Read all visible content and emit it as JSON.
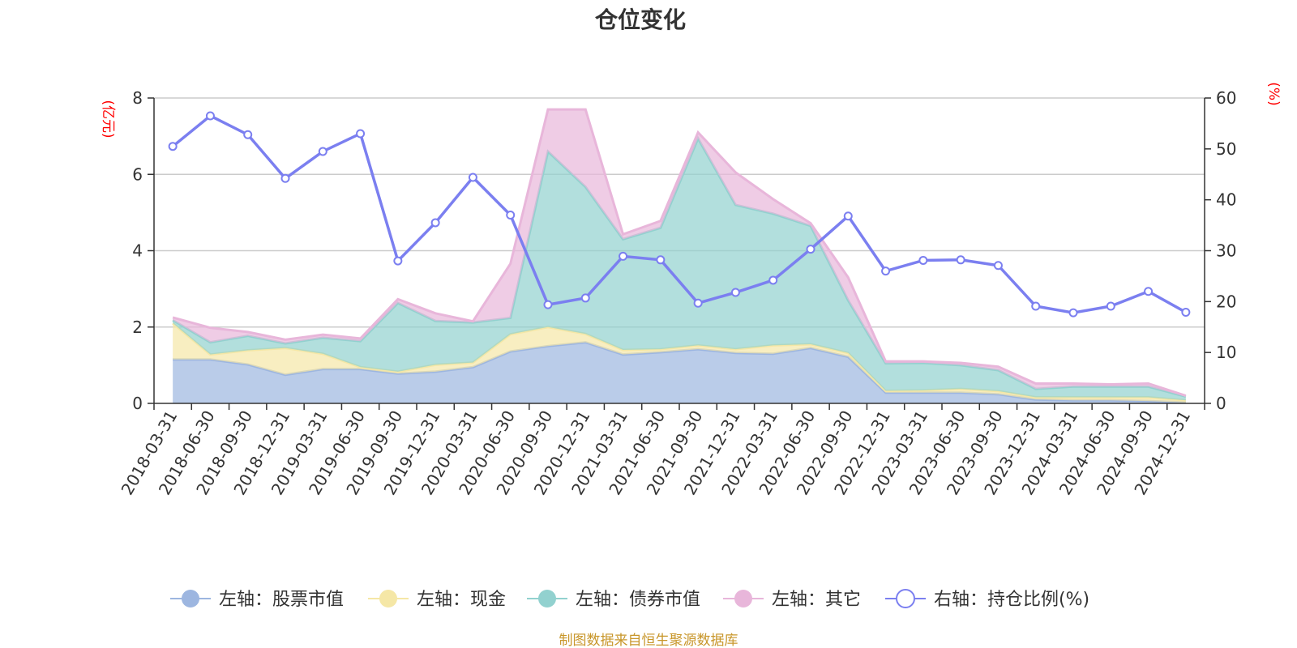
{
  "chart_data": {
    "type": "area",
    "title": "仓位变化",
    "source": "制图数据来自恒生聚源数据库",
    "left_axis": {
      "unit": "(亿元)",
      "ylim": [
        0,
        8
      ],
      "ticks": [
        "0",
        "2",
        "4",
        "6",
        "8"
      ]
    },
    "right_axis": {
      "unit": "(%)",
      "ylim": [
        0,
        60
      ],
      "ticks": [
        "0",
        "10",
        "20",
        "30",
        "40",
        "50",
        "60"
      ]
    },
    "categories": [
      "2018-03-31",
      "2018-06-30",
      "2018-09-30",
      "2018-12-31",
      "2019-03-31",
      "2019-06-30",
      "2019-09-30",
      "2019-12-31",
      "2020-03-31",
      "2020-06-30",
      "2020-09-30",
      "2020-12-31",
      "2021-03-31",
      "2021-06-30",
      "2021-09-30",
      "2021-12-31",
      "2022-03-31",
      "2022-06-30",
      "2022-09-30",
      "2022-12-31",
      "2023-03-31",
      "2023-06-30",
      "2023-09-30",
      "2023-12-31",
      "2024-03-31",
      "2024-06-30",
      "2024-09-30",
      "2024-12-31"
    ],
    "grid": true,
    "legend_position": "bottom",
    "series": [
      {
        "name": "左轴：股票市值",
        "axis": "left",
        "kind": "stack-area",
        "color": "#9db6e0",
        "values": [
          1.15,
          1.15,
          1.02,
          0.75,
          0.9,
          0.9,
          0.78,
          0.83,
          0.95,
          1.36,
          1.5,
          1.6,
          1.28,
          1.34,
          1.42,
          1.32,
          1.3,
          1.45,
          1.22,
          0.28,
          0.28,
          0.28,
          0.24,
          0.1,
          0.08,
          0.08,
          0.06,
          0.02
        ]
      },
      {
        "name": "左轴：现金",
        "axis": "left",
        "kind": "stack-area",
        "color": "#f5e7a6",
        "values": [
          0.95,
          0.13,
          0.37,
          0.7,
          0.4,
          0.05,
          0.05,
          0.18,
          0.12,
          0.45,
          0.5,
          0.22,
          0.12,
          0.08,
          0.1,
          0.1,
          0.22,
          0.1,
          0.1,
          0.05,
          0.06,
          0.1,
          0.08,
          0.06,
          0.08,
          0.08,
          0.1,
          0.06
        ]
      },
      {
        "name": "左轴：债券市值",
        "axis": "left",
        "kind": "stack-area",
        "color": "#92d1cf",
        "values": [
          0.08,
          0.32,
          0.38,
          0.12,
          0.42,
          0.68,
          1.8,
          1.15,
          1.05,
          0.43,
          4.6,
          3.85,
          2.9,
          3.18,
          5.42,
          3.78,
          3.45,
          3.1,
          1.38,
          0.72,
          0.72,
          0.62,
          0.55,
          0.22,
          0.28,
          0.28,
          0.28,
          0.1
        ]
      },
      {
        "name": "左轴：其它",
        "axis": "left",
        "kind": "stack-area",
        "color": "#e8b6da",
        "values": [
          0.07,
          0.38,
          0.1,
          0.1,
          0.08,
          0.07,
          0.1,
          0.2,
          0.03,
          1.42,
          1.1,
          2.03,
          0.13,
          0.18,
          0.16,
          0.85,
          0.38,
          0.07,
          0.6,
          0.05,
          0.04,
          0.06,
          0.09,
          0.14,
          0.08,
          0.06,
          0.08,
          0.02
        ]
      },
      {
        "name": "右轴：持仓比例(%)",
        "axis": "right",
        "kind": "line",
        "color": "#7b7ff0",
        "values": [
          50.5,
          56.5,
          52.8,
          44.2,
          49.5,
          53,
          28,
          35.5,
          44.4,
          37,
          19.4,
          20.7,
          28.9,
          28.2,
          19.7,
          21.8,
          24.2,
          30.3,
          36.8,
          26,
          28.1,
          28.2,
          27.1,
          19.1,
          17.8,
          19.1,
          22,
          17.9
        ]
      }
    ]
  }
}
